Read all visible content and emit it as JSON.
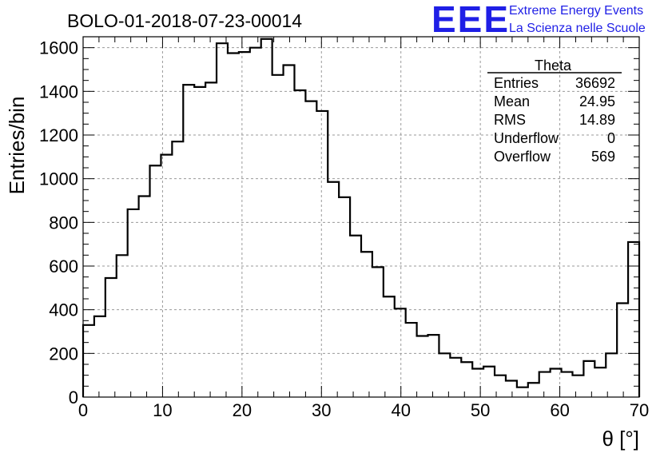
{
  "chart_data": {
    "type": "bar",
    "title": "BOLO-01-2018-07-23-00014",
    "xlabel": "θ [°]",
    "ylabel": "Entries/bin",
    "xlim": [
      0,
      70
    ],
    "ylim": [
      0,
      1650
    ],
    "grid": true,
    "x_ticks": [
      0,
      10,
      20,
      30,
      40,
      50,
      60,
      70
    ],
    "y_ticks": [
      0,
      200,
      400,
      600,
      800,
      1000,
      1200,
      1400,
      1600
    ],
    "bin_width": 1.4,
    "values": [
      330,
      370,
      545,
      650,
      860,
      920,
      1060,
      1110,
      1170,
      1430,
      1420,
      1440,
      1620,
      1575,
      1580,
      1600,
      1640,
      1475,
      1520,
      1405,
      1355,
      1310,
      985,
      915,
      740,
      665,
      595,
      460,
      405,
      340,
      280,
      285,
      200,
      180,
      160,
      130,
      140,
      100,
      75,
      45,
      65,
      115,
      130,
      115,
      100,
      165,
      135,
      200,
      430,
      710
    ]
  },
  "stats_box": {
    "title": "Theta",
    "rows": [
      {
        "label": "Entries",
        "value": "36692"
      },
      {
        "label": "Mean",
        "value": "24.95"
      },
      {
        "label": "RMS",
        "value": "14.89"
      },
      {
        "label": "Underflow",
        "value": "0"
      },
      {
        "label": "Overflow",
        "value": "569"
      }
    ]
  },
  "logo": {
    "mark": "EEE",
    "line1": "Extreme Energy Events",
    "line2": "La Scienza nelle Scuole",
    "color": "#1f1fe6"
  }
}
